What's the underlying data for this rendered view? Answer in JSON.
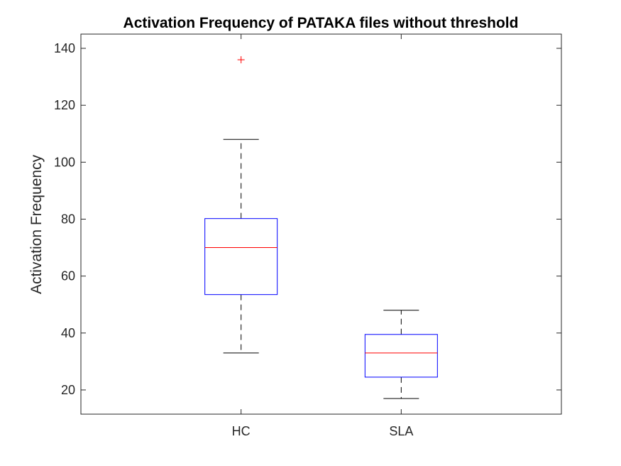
{
  "chart_data": {
    "type": "box",
    "title": "Activation Frequency of PATAKA files without threshold",
    "xlabel": "",
    "ylabel": "Activation Frequency",
    "categories": [
      "HC",
      "SLA"
    ],
    "ylim": [
      11.5,
      145
    ],
    "yticks": [
      20,
      40,
      60,
      80,
      100,
      120,
      140
    ],
    "grid": false,
    "boxes": [
      {
        "category": "HC",
        "whisker_low": 33,
        "q1": 53.5,
        "median": 70,
        "q3": 80.2,
        "whisker_high": 108,
        "outliers": [
          136
        ]
      },
      {
        "category": "SLA",
        "whisker_low": 17,
        "q1": 24.5,
        "median": 33,
        "q3": 39.5,
        "whisker_high": 48,
        "outliers": []
      }
    ],
    "colors": {
      "box": "#0000ff",
      "median": "#ff0000",
      "whisker": "#000000",
      "outlier": "#ff0000",
      "axis": "#262626"
    }
  }
}
